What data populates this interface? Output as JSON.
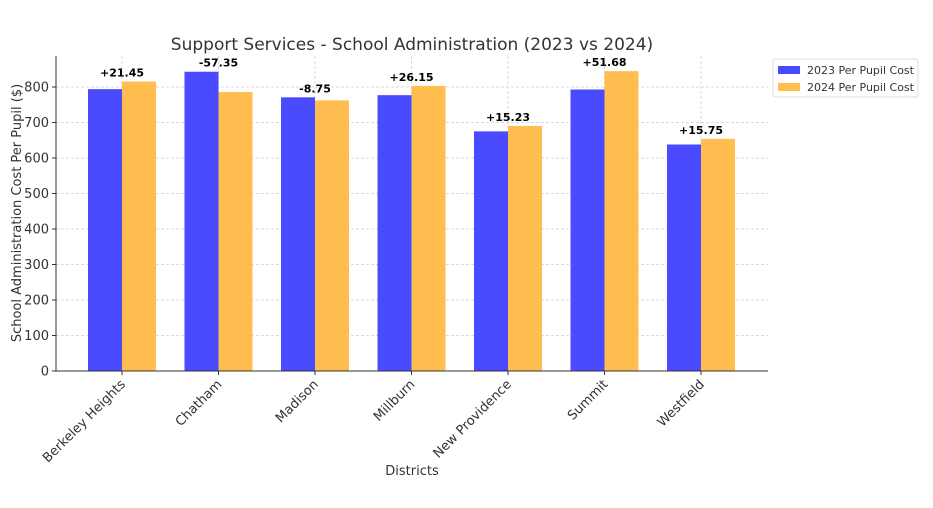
{
  "chart_data": {
    "type": "bar",
    "title": "Support Services - School Administration (2023 vs 2024)",
    "xlabel": "Districts",
    "ylabel": "School Administration Cost Per Pupil ($)",
    "ylim": [
      0,
      890
    ],
    "yticks": [
      0,
      100,
      200,
      300,
      400,
      500,
      600,
      700,
      800
    ],
    "grid": true,
    "legend_position": "outside-top-right",
    "categories": [
      "Berkeley Heights",
      "Chatham",
      "Madison",
      "Millburn",
      "New Providence",
      "Summit",
      "Westfield"
    ],
    "series": [
      {
        "name": "2023 Per Pupil Cost",
        "color": "#4a4aff",
        "values": [
          794,
          843,
          771,
          777,
          675,
          793,
          638
        ]
      },
      {
        "name": "2024 Per Pupil Cost",
        "color": "#ffbe4f",
        "values": [
          815.45,
          785.65,
          762.25,
          803.15,
          690.23,
          844.68,
          653.75
        ]
      }
    ],
    "annotations": [
      "+21.45",
      "-57.35",
      "-8.75",
      "+26.15",
      "+15.23",
      "+51.68",
      "+15.75"
    ]
  }
}
